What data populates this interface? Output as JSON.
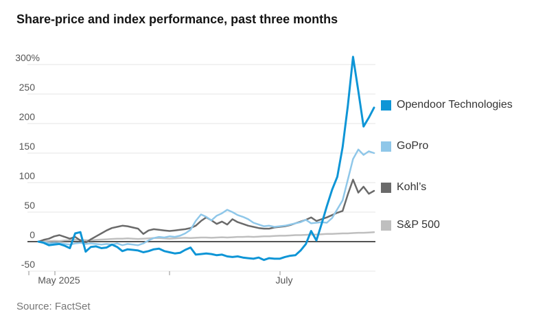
{
  "chart_data": {
    "type": "line",
    "title": "Share-price and index performance, past three months",
    "unit": "%",
    "y_axis": {
      "min": -50,
      "max": 300,
      "grid": true,
      "ticks": [
        {
          "label": "300%",
          "value": 300
        },
        {
          "label": "250",
          "value": 250
        },
        {
          "label": "200",
          "value": 200
        },
        {
          "label": "150",
          "value": 150
        },
        {
          "label": "100",
          "value": 100
        },
        {
          "label": "50",
          "value": 50
        },
        {
          "label": "0",
          "value": 0
        },
        {
          "label": "-50",
          "value": -50
        }
      ]
    },
    "x_axis": {
      "ticks": [
        {
          "label": "",
          "i": -1.83
        },
        {
          "label": "May 2025",
          "i": 3.14
        },
        {
          "label": "",
          "i": 25.0
        },
        {
          "label": "July",
          "i": 46.07
        }
      ]
    },
    "legend_position": "right-of-line-endpoints",
    "series": [
      {
        "name": "Opendoor Technologies",
        "color": "#0e95d6",
        "values": [
          0,
          -2,
          -6,
          -5,
          -4,
          -7,
          -11,
          14,
          16,
          -17,
          -9,
          -8,
          -11,
          -10,
          -5,
          -9,
          -16,
          -13,
          -14,
          -15,
          -18,
          -16,
          -13,
          -12,
          -16,
          -18,
          -20,
          -19,
          -14,
          -10,
          -22,
          -21,
          -20,
          -21,
          -23,
          -22,
          -25,
          -26,
          -25,
          -27,
          -28,
          -29,
          -27,
          -31,
          -28,
          -29,
          -29,
          -26,
          -24,
          -23,
          -15,
          -4,
          18,
          2,
          30,
          60,
          88,
          110,
          160,
          230,
          313,
          255,
          195,
          210,
          227
        ]
      },
      {
        "name": "GoPro",
        "color": "#8fc7e9",
        "values": [
          0,
          -1,
          -3,
          -2,
          -3,
          -4,
          -5,
          -3,
          -2,
          -4,
          -3,
          -4,
          -5,
          -4,
          -5,
          -3,
          -6,
          -4,
          -5,
          -6,
          -3,
          2,
          6,
          8,
          7,
          9,
          8,
          10,
          14,
          20,
          35,
          46,
          42,
          36,
          44,
          48,
          54,
          50,
          45,
          42,
          38,
          32,
          29,
          26,
          27,
          25,
          26,
          27,
          29,
          31,
          33,
          37,
          31,
          32,
          33,
          32,
          40,
          55,
          70,
          105,
          140,
          156,
          147,
          153,
          150
        ]
      },
      {
        "name": "Kohl’s",
        "color": "#6a6a6a",
        "values": [
          0,
          3,
          5,
          9,
          11,
          8,
          5,
          8,
          2,
          -2,
          4,
          9,
          14,
          19,
          23,
          25,
          27,
          26,
          24,
          22,
          13,
          19,
          21,
          20,
          19,
          18,
          19,
          20,
          21,
          23,
          27,
          35,
          41,
          36,
          30,
          34,
          29,
          38,
          33,
          30,
          27,
          25,
          23,
          22,
          22,
          24,
          25,
          26,
          28,
          31,
          34,
          37,
          41,
          35,
          38,
          41,
          45,
          49,
          52,
          80,
          105,
          83,
          93,
          81,
          86
        ]
      },
      {
        "name": "S&P 500",
        "color": "#bfbfbf",
        "values": [
          0,
          0.5,
          1,
          1.5,
          1,
          2,
          2.5,
          3,
          3,
          2.5,
          2,
          3,
          3.5,
          4,
          4.5,
          5,
          5,
          5.5,
          5,
          4.5,
          5,
          5.5,
          6,
          6,
          5.5,
          5,
          5.5,
          6,
          6.5,
          6,
          6.5,
          7,
          7,
          6.5,
          7,
          7.5,
          7,
          7.5,
          8,
          8,
          8.5,
          8,
          8.5,
          9,
          9,
          9.5,
          10,
          10,
          10.5,
          11,
          11,
          11.5,
          12,
          12,
          12.5,
          13,
          13,
          13.5,
          14,
          14,
          14.5,
          15,
          15,
          15.5,
          16
        ]
      }
    ],
    "style_colors": {
      "gridline": "#e5e5e5",
      "zero_line": "#1a1a1a",
      "tick": "#8f8f8f",
      "axis_label": "#555555"
    }
  },
  "source": "Source: FactSet"
}
